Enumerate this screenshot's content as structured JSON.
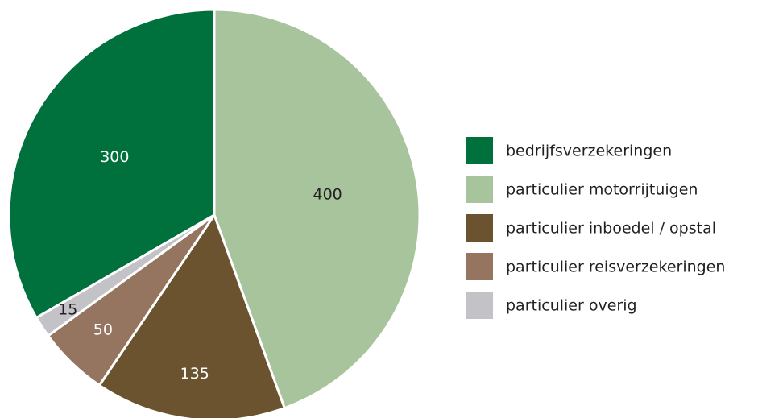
{
  "chart_data": {
    "type": "pie",
    "categories": [
      "bedrijfsverzekeringen",
      "particulier motorrijtuigen",
      "particulier inboedel / opstal",
      "particulier reisverzekeringen",
      "particulier overig"
    ],
    "values": [
      300,
      400,
      135,
      50,
      15
    ],
    "colors": [
      "#00703c",
      "#a8c49c",
      "#6b5330",
      "#957560",
      "#c3c3c7"
    ],
    "legend": "right"
  }
}
